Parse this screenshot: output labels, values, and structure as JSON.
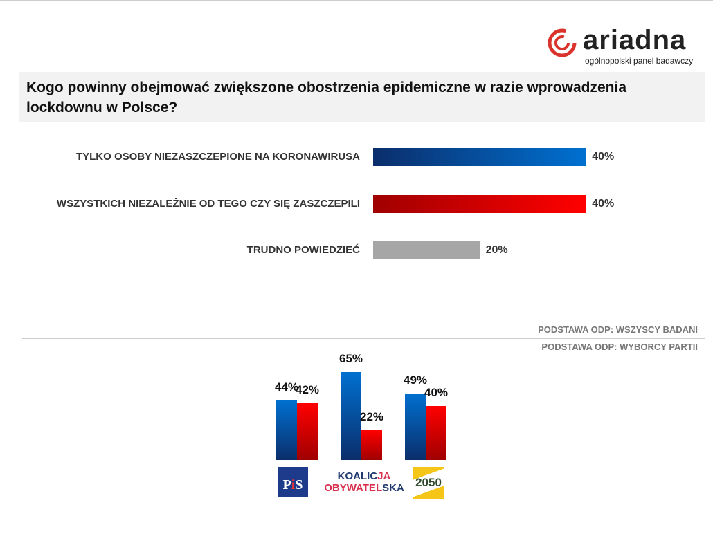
{
  "logo": {
    "word": "ariadna",
    "subtitle": "ogólnopolski panel badawczy"
  },
  "colors": {
    "blue": "#0070c0",
    "red": "#ff0000",
    "gray": "#a6a6a6"
  },
  "chart_data": [
    {
      "type": "bar",
      "orientation": "horizontal",
      "title": "Kogo powinny obejmować zwiększone obostrzenia epidemiczne w razie wprowadzenia lockdownu w Polsce?",
      "categories": [
        "TYLKO OSOBY NIEZASZCZEPIONE NA KORONAWIRUSA",
        "WSZYSTKICH NIEZALEŻNIE OD TEGO CZY SIĘ ZASZCZEPILI",
        "TRUDNO POWIEDZIEĆ"
      ],
      "values": [
        40,
        40,
        20
      ],
      "labels": [
        "40%",
        "40%",
        "20%"
      ],
      "note": "PODSTAWA ODP: WSZYSCY BADANI"
    },
    {
      "type": "bar",
      "orientation": "vertical",
      "categories": [
        "PiS",
        "KOALICJA OBYWATELSKA",
        "2050"
      ],
      "series": [
        {
          "values": [
            44,
            65,
            49
          ],
          "labels": [
            "44%",
            "65%",
            "49%"
          ]
        },
        {
          "values": [
            42,
            22,
            40
          ],
          "labels": [
            "42%",
            "22%",
            "40%"
          ]
        }
      ],
      "note": "PODSTAWA ODP: WYBORCY PARTII"
    }
  ]
}
